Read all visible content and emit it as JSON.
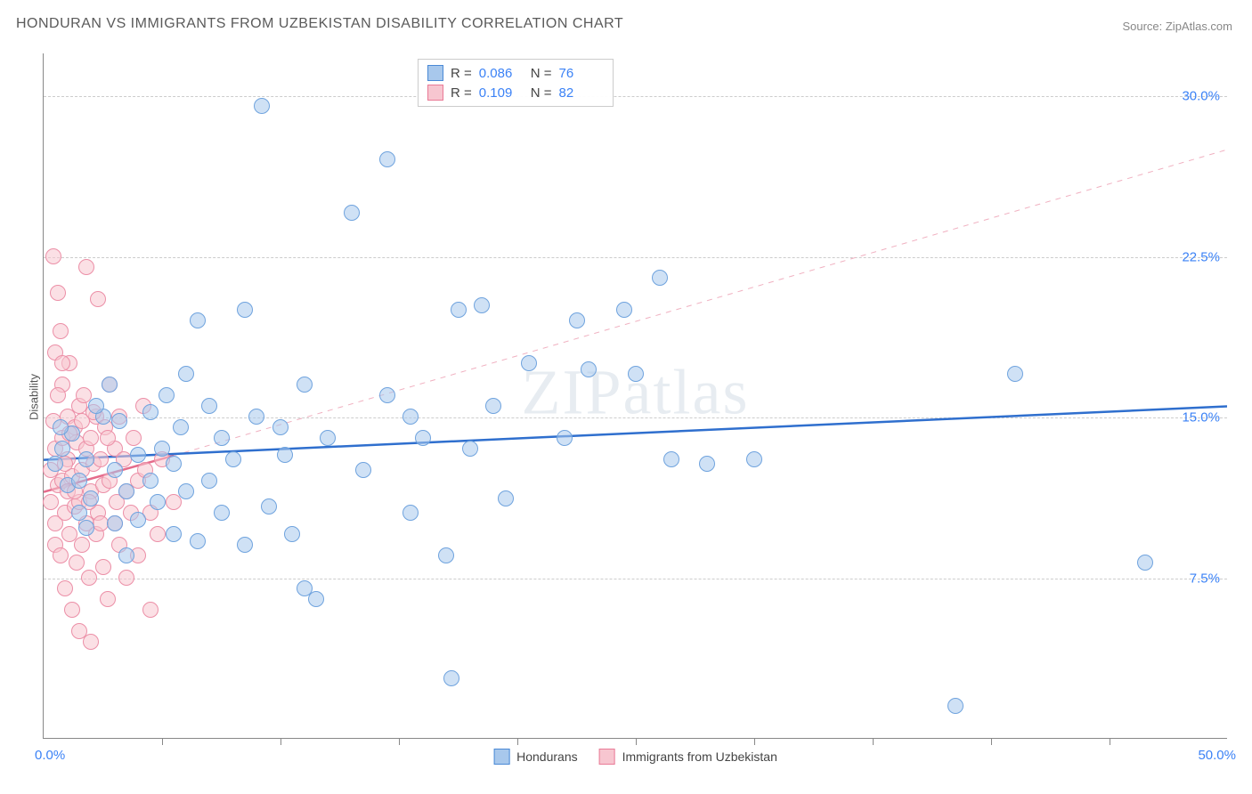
{
  "title": "HONDURAN VS IMMIGRANTS FROM UZBEKISTAN DISABILITY CORRELATION CHART",
  "source_label": "Source: ",
  "source_name": "ZipAtlas.com",
  "ylabel": "Disability",
  "watermark": "ZIPatlas",
  "chart": {
    "type": "scatter",
    "xlim": [
      0,
      50
    ],
    "ylim": [
      0,
      32
    ],
    "x_min_label": "0.0%",
    "x_max_label": "50.0%",
    "ytick_values": [
      7.5,
      15.0,
      22.5,
      30.0
    ],
    "ytick_labels": [
      "7.5%",
      "15.0%",
      "22.5%",
      "30.0%"
    ],
    "xtick_values": [
      5,
      10,
      15,
      20,
      25,
      30,
      35,
      40,
      45
    ],
    "grid_color": "#cccccc",
    "axis_color": "#888888",
    "background_color": "#ffffff"
  },
  "series": {
    "blue": {
      "name": "Hondurans",
      "color_fill": "#a8c8ec",
      "color_stroke": "#6fa3de",
      "r_value": "0.086",
      "n_value": "76",
      "trend_solid": {
        "x1": 0,
        "y1": 13.0,
        "x2": 50,
        "y2": 15.5,
        "color": "#2f6fce",
        "width": 2.5
      },
      "points": [
        [
          0.5,
          12.8
        ],
        [
          0.8,
          13.5
        ],
        [
          1.0,
          11.8
        ],
        [
          1.2,
          14.2
        ],
        [
          1.5,
          10.5
        ],
        [
          1.5,
          12.0
        ],
        [
          1.8,
          13.0
        ],
        [
          2.0,
          11.2
        ],
        [
          2.5,
          15.0
        ],
        [
          2.8,
          16.5
        ],
        [
          3.0,
          12.5
        ],
        [
          3.0,
          10.0
        ],
        [
          3.2,
          14.8
        ],
        [
          3.5,
          8.5
        ],
        [
          3.5,
          11.5
        ],
        [
          4.0,
          13.2
        ],
        [
          4.0,
          10.2
        ],
        [
          4.5,
          15.2
        ],
        [
          4.5,
          12.0
        ],
        [
          4.8,
          11.0
        ],
        [
          5.0,
          13.5
        ],
        [
          5.2,
          16.0
        ],
        [
          5.5,
          12.8
        ],
        [
          5.8,
          14.5
        ],
        [
          6.0,
          11.5
        ],
        [
          6.0,
          17.0
        ],
        [
          6.5,
          19.5
        ],
        [
          6.5,
          9.2
        ],
        [
          7.0,
          15.5
        ],
        [
          7.0,
          12.0
        ],
        [
          7.5,
          10.5
        ],
        [
          7.5,
          14.0
        ],
        [
          8.0,
          13.0
        ],
        [
          8.5,
          9.0
        ],
        [
          8.5,
          20.0
        ],
        [
          9.0,
          15.0
        ],
        [
          9.2,
          29.5
        ],
        [
          9.5,
          10.8
        ],
        [
          10.0,
          14.5
        ],
        [
          10.2,
          13.2
        ],
        [
          10.5,
          9.5
        ],
        [
          11.0,
          16.5
        ],
        [
          11.5,
          6.5
        ],
        [
          12.0,
          14.0
        ],
        [
          13.0,
          24.5
        ],
        [
          13.5,
          12.5
        ],
        [
          14.5,
          27.0
        ],
        [
          14.5,
          16.0
        ],
        [
          15.5,
          15.0
        ],
        [
          15.5,
          10.5
        ],
        [
          16.0,
          14.0
        ],
        [
          17.2,
          2.8
        ],
        [
          17.0,
          8.5
        ],
        [
          17.5,
          20.0
        ],
        [
          18.0,
          13.5
        ],
        [
          18.5,
          20.2
        ],
        [
          19.0,
          15.5
        ],
        [
          19.5,
          11.2
        ],
        [
          20.5,
          17.5
        ],
        [
          22.0,
          14.0
        ],
        [
          22.5,
          19.5
        ],
        [
          23.0,
          17.2
        ],
        [
          24.5,
          20.0
        ],
        [
          25.0,
          17.0
        ],
        [
          26.0,
          21.5
        ],
        [
          26.5,
          13.0
        ],
        [
          28.0,
          12.8
        ],
        [
          30.0,
          13.0
        ],
        [
          38.5,
          1.5
        ],
        [
          41.0,
          17.0
        ],
        [
          46.5,
          8.2
        ],
        [
          11.0,
          7.0
        ],
        [
          5.5,
          9.5
        ],
        [
          2.2,
          15.5
        ],
        [
          1.8,
          9.8
        ],
        [
          0.7,
          14.5
        ]
      ]
    },
    "pink": {
      "name": "Immigrants from Uzbekistan",
      "color_fill": "#f7c6d0",
      "color_stroke": "#ec8fa7",
      "r_value": "0.109",
      "n_value": "82",
      "trend_solid": {
        "x1": 0,
        "y1": 11.5,
        "x2": 5.5,
        "y2": 13.2,
        "color": "#e56b8b",
        "width": 2.5
      },
      "trend_dashed": {
        "x1": 5.5,
        "y1": 13.2,
        "x2": 50,
        "y2": 27.5,
        "color": "#f0b0c0",
        "width": 1,
        "dash": "6,6"
      },
      "points": [
        [
          0.3,
          11.0
        ],
        [
          0.3,
          12.5
        ],
        [
          0.4,
          22.5
        ],
        [
          0.5,
          10.0
        ],
        [
          0.5,
          13.5
        ],
        [
          0.5,
          9.0
        ],
        [
          0.6,
          20.8
        ],
        [
          0.6,
          11.8
        ],
        [
          0.7,
          19.0
        ],
        [
          0.7,
          8.5
        ],
        [
          0.8,
          14.0
        ],
        [
          0.8,
          12.0
        ],
        [
          0.8,
          16.5
        ],
        [
          0.9,
          10.5
        ],
        [
          0.9,
          7.0
        ],
        [
          1.0,
          13.0
        ],
        [
          1.0,
          15.0
        ],
        [
          1.0,
          11.5
        ],
        [
          1.1,
          9.5
        ],
        [
          1.1,
          17.5
        ],
        [
          1.2,
          12.2
        ],
        [
          1.2,
          6.0
        ],
        [
          1.3,
          14.5
        ],
        [
          1.3,
          10.8
        ],
        [
          1.4,
          8.2
        ],
        [
          1.4,
          13.8
        ],
        [
          1.5,
          11.0
        ],
        [
          1.5,
          15.5
        ],
        [
          1.5,
          5.0
        ],
        [
          1.6,
          12.5
        ],
        [
          1.6,
          9.0
        ],
        [
          1.7,
          16.0
        ],
        [
          1.8,
          22.0
        ],
        [
          1.8,
          10.0
        ],
        [
          1.8,
          13.5
        ],
        [
          1.9,
          7.5
        ],
        [
          2.0,
          14.0
        ],
        [
          2.0,
          11.5
        ],
        [
          2.0,
          4.5
        ],
        [
          2.1,
          12.8
        ],
        [
          2.2,
          9.5
        ],
        [
          2.2,
          15.0
        ],
        [
          2.3,
          20.5
        ],
        [
          2.3,
          10.5
        ],
        [
          2.4,
          13.0
        ],
        [
          2.5,
          8.0
        ],
        [
          2.5,
          11.8
        ],
        [
          2.6,
          14.5
        ],
        [
          2.7,
          6.5
        ],
        [
          2.8,
          12.0
        ],
        [
          2.8,
          16.5
        ],
        [
          3.0,
          10.0
        ],
        [
          3.0,
          13.5
        ],
        [
          3.2,
          9.0
        ],
        [
          3.2,
          15.0
        ],
        [
          3.5,
          11.5
        ],
        [
          3.5,
          7.5
        ],
        [
          3.8,
          14.0
        ],
        [
          4.0,
          12.0
        ],
        [
          4.0,
          8.5
        ],
        [
          4.2,
          15.5
        ],
        [
          4.5,
          10.5
        ],
        [
          4.5,
          6.0
        ],
        [
          5.0,
          13.0
        ],
        [
          5.5,
          11.0
        ],
        [
          0.4,
          14.8
        ],
        [
          0.6,
          16.0
        ],
        [
          0.9,
          12.8
        ],
        [
          1.1,
          14.2
        ],
        [
          1.3,
          11.5
        ],
        [
          1.6,
          14.8
        ],
        [
          1.9,
          11.0
        ],
        [
          2.1,
          15.2
        ],
        [
          2.4,
          10.0
        ],
        [
          2.7,
          14.0
        ],
        [
          3.1,
          11.0
        ],
        [
          3.4,
          13.0
        ],
        [
          3.7,
          10.5
        ],
        [
          4.3,
          12.5
        ],
        [
          4.8,
          9.5
        ],
        [
          0.5,
          18.0
        ],
        [
          0.8,
          17.5
        ]
      ]
    }
  },
  "bottom_legend": [
    {
      "swatch": "blue",
      "label_key": "series.blue.name"
    },
    {
      "swatch": "pink",
      "label_key": "series.pink.name"
    }
  ]
}
